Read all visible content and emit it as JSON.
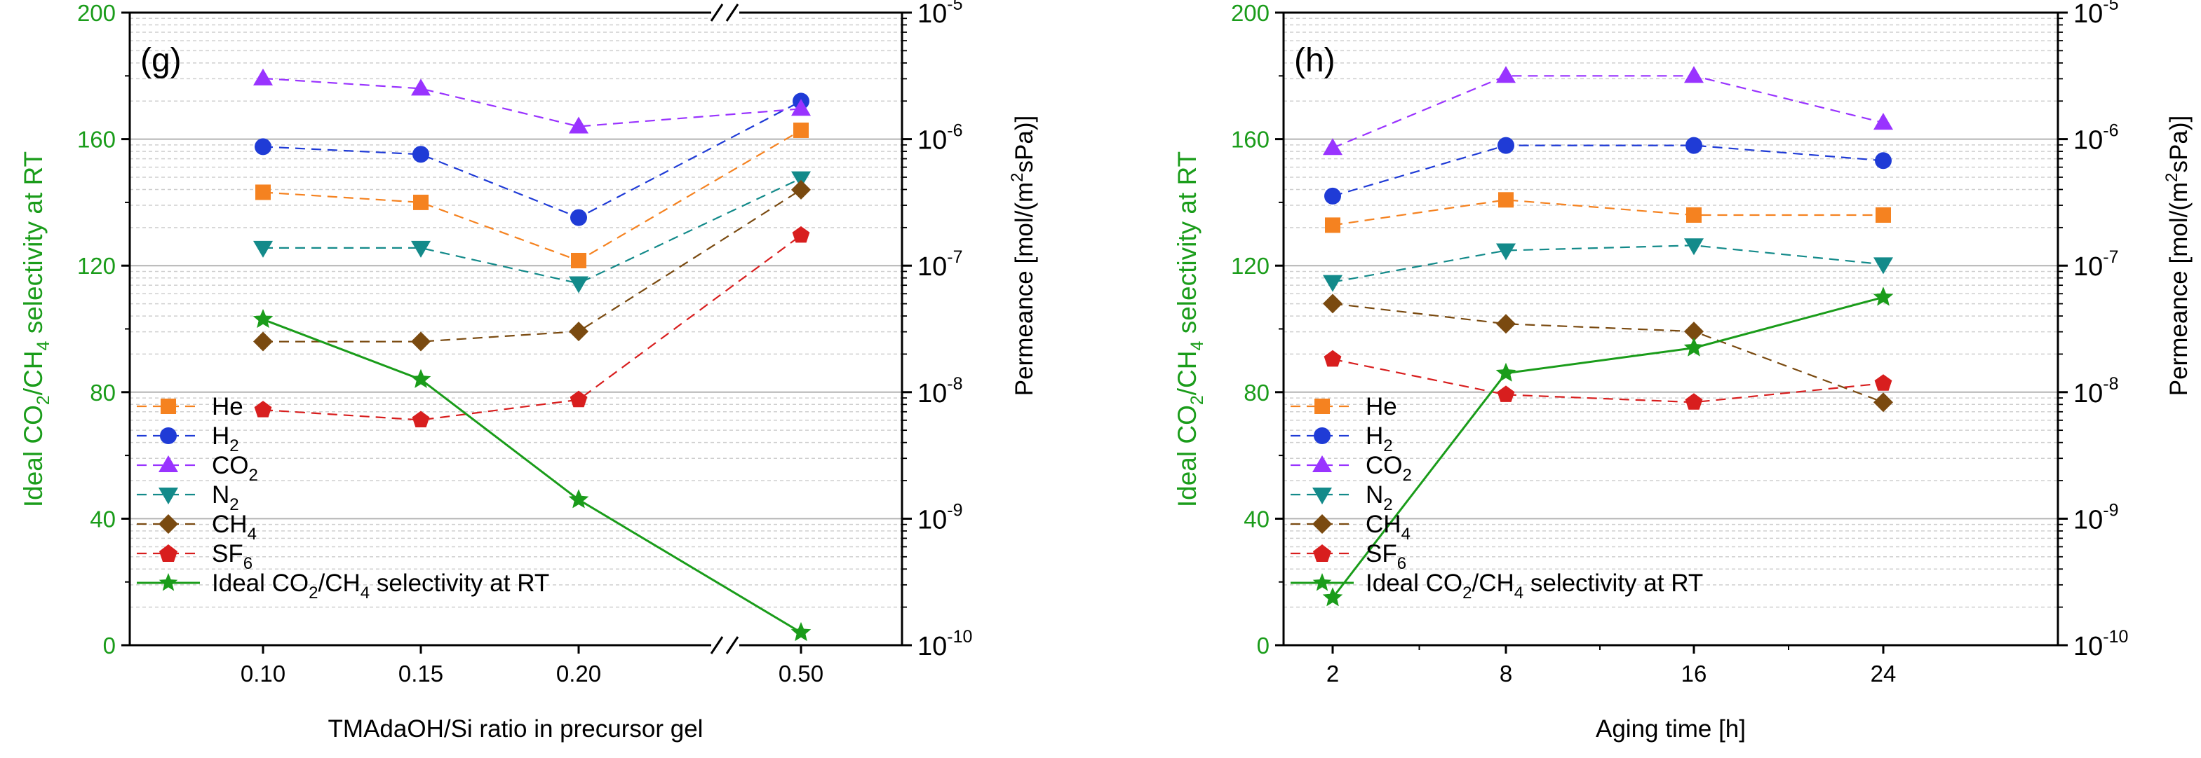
{
  "chart_data": [
    {
      "type": "line",
      "panel_label": "(g)",
      "xlabel": "TMAdaOH/Si ratio in precursor gel",
      "ylabel_left": "Ideal CO2/CH4 selectivity at RT",
      "ylabel_right": "Permeance [mol/(m2sPa)]",
      "categories": [
        "0.10",
        "0.15",
        "0.20",
        "0.50"
      ],
      "axis_break_after_category": "0.20",
      "ylim_left": [
        0,
        200
      ],
      "left_ticks": [
        "0",
        "40",
        "80",
        "120",
        "160",
        "200"
      ],
      "ylim_right_log10": [
        -10,
        -5
      ],
      "right_ticks": [
        "10-10",
        "10-9",
        "10-8",
        "10-7",
        "10-6",
        "10-5"
      ],
      "legend_position": "bottom-left",
      "series": [
        {
          "name": "He",
          "axis": "right",
          "marker": "square",
          "color": "#f58220",
          "values_log10": [
            -6.42,
            -6.5,
            -6.96,
            -5.93
          ]
        },
        {
          "name": "H2",
          "axis": "right",
          "marker": "circle",
          "color": "#1f3bd6",
          "values_log10": [
            -6.06,
            -6.12,
            -6.62,
            -5.7
          ]
        },
        {
          "name": "CO2",
          "axis": "right",
          "marker": "triangle-up",
          "color": "#9933ff",
          "values_log10": [
            -5.52,
            -5.6,
            -5.9,
            -5.76
          ]
        },
        {
          "name": "N2",
          "axis": "right",
          "marker": "triangle-down",
          "color": "#138a8a",
          "values_log10": [
            -6.86,
            -6.86,
            -7.14,
            -6.31
          ]
        },
        {
          "name": "CH4",
          "axis": "right",
          "marker": "diamond",
          "color": "#7a4a10",
          "values_log10": [
            -7.6,
            -7.6,
            -7.52,
            -6.4
          ]
        },
        {
          "name": "SF6",
          "axis": "right",
          "marker": "pentagon",
          "color": "#d81e1e",
          "values_log10": [
            -8.14,
            -8.22,
            -8.06,
            -6.76
          ]
        },
        {
          "name": "Ideal CO2/CH4 selectivity at RT",
          "axis": "left",
          "marker": "star",
          "color": "#1a9c1a",
          "values": [
            103,
            84,
            46,
            4
          ]
        }
      ]
    },
    {
      "type": "line",
      "panel_label": "(h)",
      "xlabel": "Aging time [h]",
      "ylabel_left": "Ideal CO2/CH4 selectivity at RT",
      "ylabel_right": "Permeance [mol/(m2sPa)]",
      "categories": [
        "2",
        "8",
        "16",
        "24"
      ],
      "ylim_left": [
        0,
        200
      ],
      "left_ticks": [
        "0",
        "40",
        "80",
        "120",
        "160",
        "200"
      ],
      "ylim_right_log10": [
        -10,
        -5
      ],
      "right_ticks": [
        "10-10",
        "10-9",
        "10-8",
        "10-7",
        "10-6",
        "10-5"
      ],
      "legend_position": "bottom-left",
      "series": [
        {
          "name": "He",
          "axis": "right",
          "marker": "square",
          "color": "#f58220",
          "values_log10": [
            -6.68,
            -6.48,
            -6.6,
            -6.6
          ]
        },
        {
          "name": "H2",
          "axis": "right",
          "marker": "circle",
          "color": "#1f3bd6",
          "values_log10": [
            -6.45,
            -6.05,
            -6.05,
            -6.17
          ]
        },
        {
          "name": "CO2",
          "axis": "right",
          "marker": "triangle-up",
          "color": "#9933ff",
          "values_log10": [
            -6.07,
            -5.5,
            -5.5,
            -5.87
          ]
        },
        {
          "name": "N2",
          "axis": "right",
          "marker": "triangle-down",
          "color": "#138a8a",
          "values_log10": [
            -7.13,
            -6.88,
            -6.84,
            -6.99
          ]
        },
        {
          "name": "CH4",
          "axis": "right",
          "marker": "diamond",
          "color": "#7a4a10",
          "values_log10": [
            -7.3,
            -7.46,
            -7.52,
            -8.08
          ]
        },
        {
          "name": "SF6",
          "axis": "right",
          "marker": "pentagon",
          "color": "#d81e1e",
          "values_log10": [
            -7.74,
            -8.02,
            -8.08,
            -7.93
          ]
        },
        {
          "name": "Ideal CO2/CH4 selectivity at RT",
          "axis": "left",
          "marker": "star",
          "color": "#1a9c1a",
          "values": [
            15,
            86,
            94,
            110
          ]
        }
      ]
    }
  ],
  "legend": {
    "he": "He",
    "h2": {
      "base": "H",
      "sub": "2"
    },
    "co2": {
      "base": "CO",
      "sub": "2"
    },
    "n2": {
      "base": "N",
      "sub": "2"
    },
    "ch4": {
      "base": "CH",
      "sub": "4"
    },
    "sf6": {
      "base": "SF",
      "sub": "6"
    },
    "selectivity": {
      "p1": "Ideal CO",
      "s1": "2",
      "p2": "/CH",
      "s2": "4",
      "p3": " selectivity at RT"
    }
  },
  "axis_text": {
    "left": {
      "p1": "Ideal CO",
      "s1": "2",
      "p2": "/CH",
      "s2": "4",
      "p3": " selectivity at RT"
    },
    "right": {
      "p1": "Permeance [mol/(m",
      "sup": "2",
      "p2": "sPa)]"
    }
  },
  "colors": {
    "selectivity_axis": "#1a9c1a",
    "grid_major": "#b3b3b3",
    "grid_minor": "#cfcfcf",
    "frame": "#000000"
  }
}
